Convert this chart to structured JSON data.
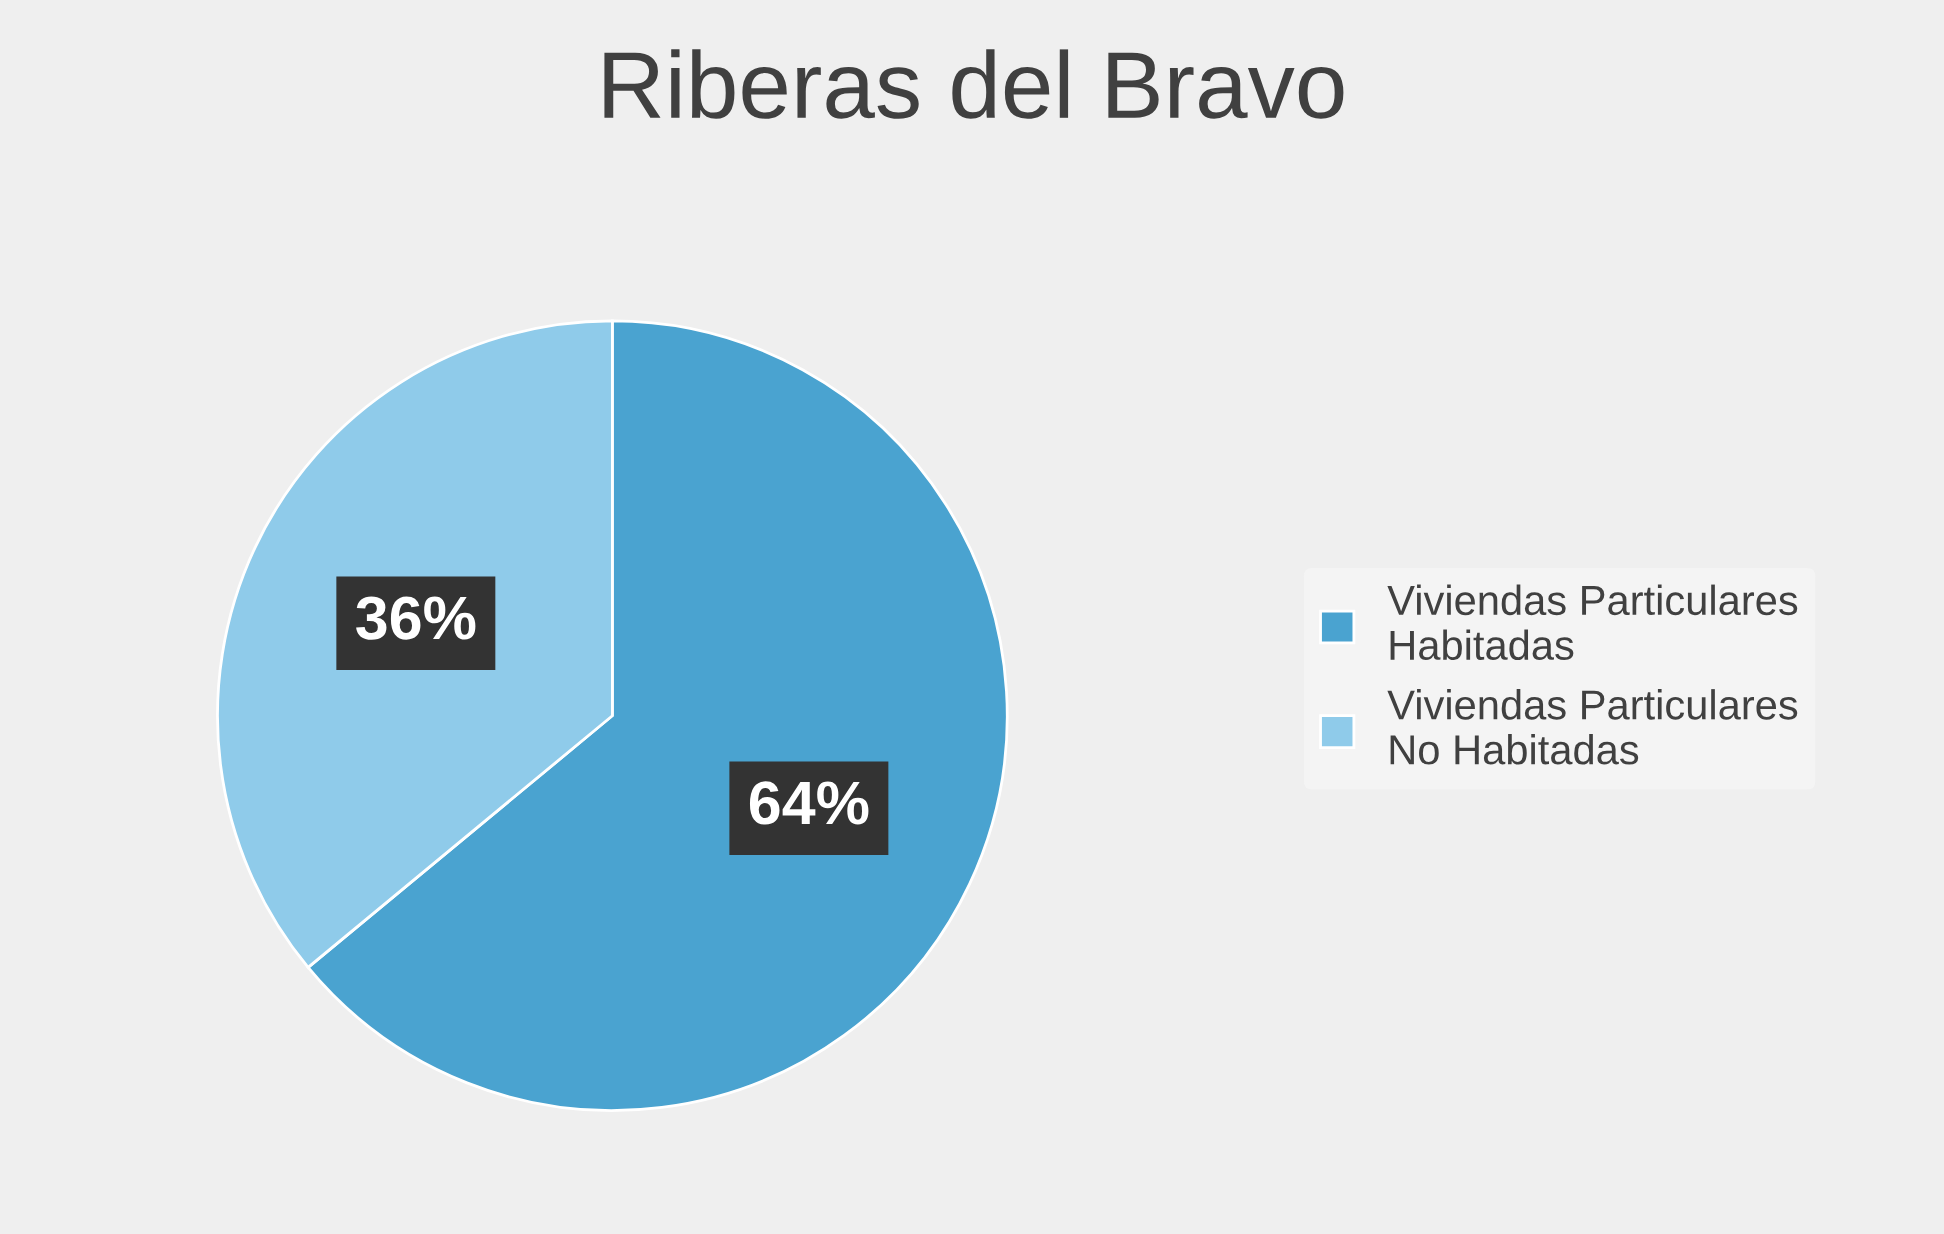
{
  "chart_data": {
    "type": "pie",
    "title": "Riberas del Bravo",
    "categories": [
      "Viviendas Particulares Habitadas",
      "Viviendas Particulares No Habitadas"
    ],
    "values": [
      64,
      36
    ],
    "value_labels": [
      "64%",
      "36%"
    ],
    "colors": [
      "#4aa3d0",
      "#8fcbea"
    ],
    "legend": "right"
  }
}
